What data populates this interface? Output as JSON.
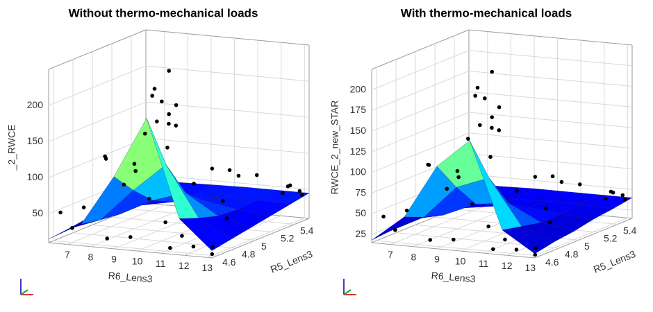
{
  "chart_data": [
    {
      "type": "surface3d",
      "title": "Without thermo-mechanical loads",
      "xlabel": "R6_Lens3",
      "ylabel": "R5_Lens3",
      "zlabel": "_2_RWCE",
      "xlim": [
        6.2,
        13.2
      ],
      "ylim": [
        4.55,
        5.55
      ],
      "zlim": [
        10,
        250
      ],
      "xticks": [
        7,
        8,
        9,
        10,
        11,
        12,
        13
      ],
      "yticks": [
        4.6,
        4.8,
        5,
        5.2,
        5.4
      ],
      "zticks": [
        50,
        100,
        150,
        200
      ],
      "colormap": "jet",
      "point_color": "#000000",
      "surface": {
        "x": [
          6.2,
          7.6,
          9.0,
          10.4,
          11.8,
          13.2
        ],
        "y": [
          4.55,
          4.75,
          4.95,
          5.15,
          5.35,
          5.55
        ],
        "z": [
          [
            15,
            40,
            110,
            195,
            60,
            20
          ],
          [
            18,
            35,
            80,
            120,
            50,
            25
          ],
          [
            22,
            32,
            55,
            70,
            42,
            30
          ],
          [
            28,
            33,
            42,
            48,
            40,
            35
          ],
          [
            35,
            37,
            40,
            42,
            42,
            40
          ],
          [
            42,
            43,
            44,
            45,
            45,
            45
          ]
        ]
      },
      "points": {
        "x": [
          9.9,
          9.7,
          9.8,
          10.0,
          9.6,
          9.9,
          10.1,
          9.5,
          9.8,
          10.2,
          7.0,
          7.5,
          8.2,
          6.5,
          8.8,
          11.0,
          11.5,
          12.2,
          12.6,
          13.0,
          7.2,
          8.0,
          9.0,
          10.5,
          11.8,
          12.8,
          6.8,
          9.3,
          10.8,
          12.0,
          12.5,
          13.0,
          12.8,
          13.1,
          12.9,
          8.5,
          9.5,
          11.2,
          7.8,
          10.0
        ],
        "y": [
          4.9,
          4.8,
          4.85,
          4.95,
          4.8,
          4.9,
          4.85,
          4.75,
          4.8,
          4.9,
          4.6,
          4.6,
          4.65,
          4.6,
          4.7,
          4.6,
          4.65,
          4.6,
          4.7,
          4.6,
          4.9,
          5.0,
          5.1,
          5.2,
          5.0,
          4.8,
          5.3,
          5.3,
          5.4,
          5.3,
          5.5,
          5.5,
          5.45,
          5.5,
          5.35,
          4.6,
          4.6,
          4.6,
          5.2,
          5.5
        ],
        "z": [
          240,
          220,
          200,
          190,
          210,
          180,
          170,
          160,
          175,
          165,
          30,
          60,
          130,
          50,
          90,
          50,
          30,
          20,
          15,
          12,
          110,
          100,
          120,
          90,
          60,
          50,
          70,
          60,
          70,
          80,
          55,
          50,
          60,
          45,
          55,
          20,
          25,
          15,
          40,
          70
        ]
      }
    },
    {
      "type": "surface3d",
      "title": "With thermo-mechanical loads",
      "xlabel": "R6_Lens3",
      "ylabel": "R5_Lens3",
      "zlabel": "RWCE_2_new_STAR",
      "xlim": [
        6.2,
        13.2
      ],
      "ylim": [
        4.55,
        5.55
      ],
      "zlim": [
        15,
        225
      ],
      "xticks": [
        7,
        8,
        9,
        10,
        11,
        12,
        13
      ],
      "yticks": [
        4.6,
        4.8,
        5,
        5.2,
        5.4
      ],
      "zticks": [
        25,
        50,
        75,
        100,
        125,
        150,
        175,
        200
      ],
      "colormap": "jet",
      "point_color": "#000000",
      "surface": {
        "x": [
          6.2,
          7.6,
          9.0,
          10.4,
          11.8,
          13.2
        ],
        "y": [
          4.55,
          4.75,
          4.95,
          5.15,
          5.35,
          5.55
        ],
        "z": [
          [
            18,
            50,
            115,
            150,
            45,
            20
          ],
          [
            20,
            40,
            80,
            95,
            40,
            25
          ],
          [
            24,
            33,
            50,
            55,
            35,
            28
          ],
          [
            28,
            32,
            38,
            40,
            36,
            33
          ],
          [
            33,
            35,
            37,
            38,
            38,
            36
          ],
          [
            38,
            39,
            40,
            40,
            40,
            40
          ]
        ]
      },
      "points": {
        "x": [
          9.9,
          9.7,
          9.8,
          10.0,
          9.6,
          9.9,
          10.1,
          9.5,
          9.8,
          10.2,
          7.0,
          7.5,
          8.2,
          6.5,
          8.8,
          11.0,
          11.5,
          12.2,
          12.6,
          13.0,
          7.2,
          8.0,
          9.0,
          10.5,
          11.8,
          12.8,
          6.8,
          9.3,
          10.8,
          12.0,
          12.5,
          13.0,
          12.8,
          13.1,
          12.9,
          8.5,
          9.5,
          11.2,
          7.8,
          10.0
        ],
        "y": [
          4.9,
          4.8,
          4.85,
          4.95,
          4.8,
          4.9,
          4.85,
          4.75,
          4.8,
          4.9,
          4.6,
          4.6,
          4.65,
          4.6,
          4.7,
          4.6,
          4.65,
          4.6,
          4.7,
          4.6,
          4.9,
          5.0,
          5.1,
          5.2,
          5.0,
          4.8,
          5.3,
          5.3,
          5.4,
          5.3,
          5.5,
          5.5,
          5.45,
          5.5,
          5.35,
          4.6,
          4.6,
          4.6,
          5.2,
          5.5
        ],
        "z": [
          215,
          200,
          185,
          170,
          190,
          160,
          150,
          140,
          155,
          145,
          30,
          55,
          110,
          45,
          80,
          45,
          28,
          20,
          18,
          16,
          95,
          85,
          100,
          75,
          50,
          45,
          60,
          50,
          60,
          65,
          48,
          45,
          50,
          40,
          48,
          22,
          25,
          18,
          35,
          60
        ]
      }
    }
  ]
}
